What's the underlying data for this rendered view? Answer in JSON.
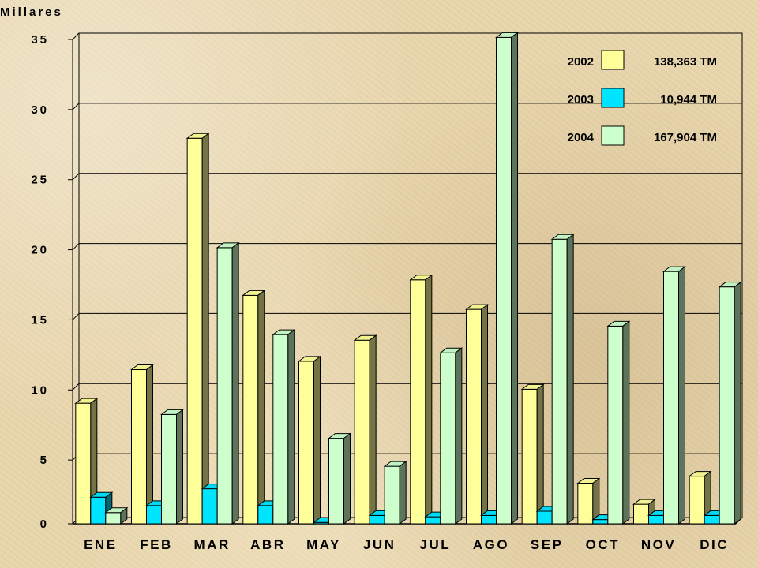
{
  "chart_data": {
    "type": "bar",
    "ylabel": "Millares",
    "ylim": [
      0,
      35
    ],
    "yticks": [
      "0",
      "5",
      "10",
      "15",
      "20",
      "25",
      "30",
      "35"
    ],
    "grid": true,
    "legend_position": "top-right",
    "categories": [
      "ENE",
      "FEB",
      "MAR",
      "ABR",
      "MAY",
      "JUN",
      "JUL",
      "AGO",
      "SEP",
      "OCT",
      "NOV",
      "DIC"
    ],
    "series": [
      {
        "name": "2002",
        "total": "138,363 TM",
        "color": "#ffff99",
        "values": [
          8.6,
          11.0,
          27.5,
          16.3,
          11.6,
          13.1,
          17.4,
          15.3,
          9.6,
          2.9,
          1.4,
          3.4
        ]
      },
      {
        "name": "2003",
        "total": "10,944 TM",
        "color": "#00e5ff",
        "values": [
          1.9,
          1.3,
          2.5,
          1.3,
          0.1,
          0.6,
          0.5,
          0.6,
          0.9,
          0.3,
          0.6,
          0.6
        ]
      },
      {
        "name": "2004",
        "total": "167,904 TM",
        "color": "#ccffcc",
        "values": [
          0.8,
          7.8,
          19.7,
          13.5,
          6.1,
          4.1,
          12.2,
          34.7,
          20.3,
          14.1,
          18.0,
          16.9
        ]
      }
    ]
  }
}
